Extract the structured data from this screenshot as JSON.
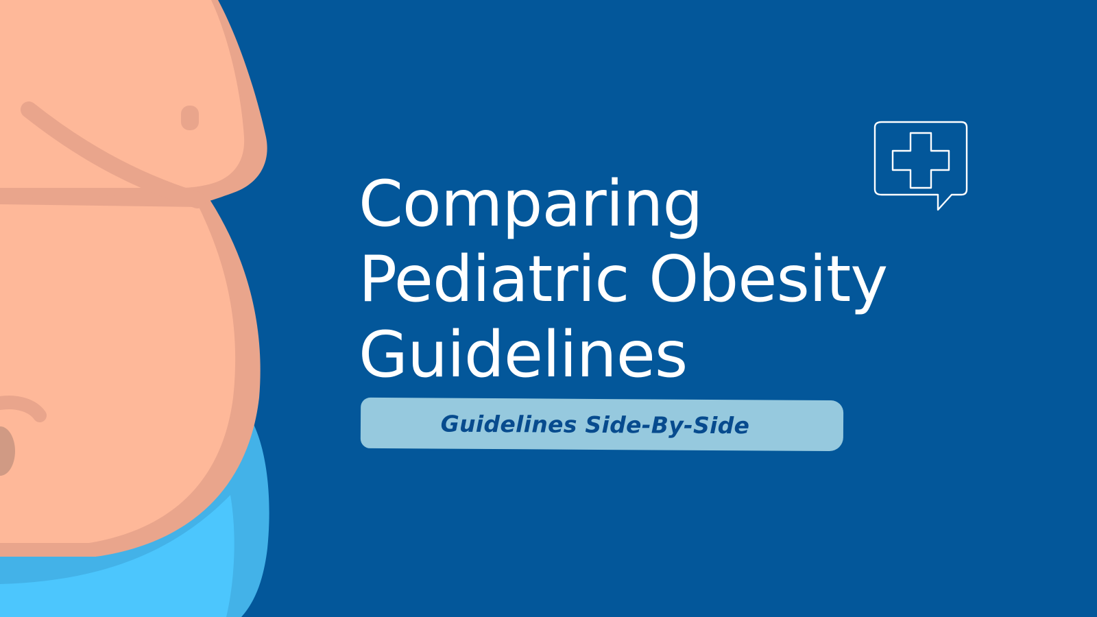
{
  "title": {
    "lines": [
      "Comparing",
      "Pediatric Obesity",
      "Guidelines"
    ]
  },
  "subtitle": "Guidelines Side-By-Side",
  "icons": {
    "illustration": "belly-illustration",
    "badge": "chat-bubble-medical-cross-icon"
  },
  "colors": {
    "background": "#03579a",
    "title_text": "#ffffff",
    "subtitle_pill": "#96c9de",
    "subtitle_text": "#074b8e",
    "skin": "#feb899",
    "skin_shadow": "#e9a58c",
    "shorts": "#4cc6fd",
    "shorts_shadow": "#43b2e8"
  }
}
